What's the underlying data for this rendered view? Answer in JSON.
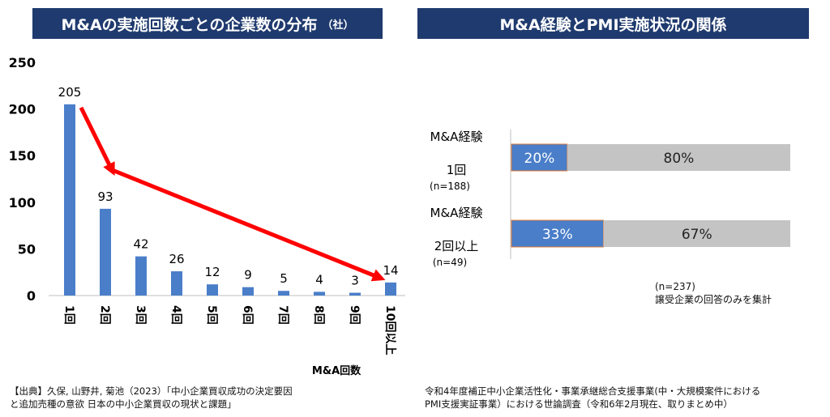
{
  "left_title": "M&Aの実施回数ごとの企業数の分布",
  "left_title_unit": "（社）",
  "right_title": "M&A経験とPMI実施状況の関係",
  "chart_data": [
    {
      "type": "bar",
      "categories": [
        "1回",
        "2回",
        "3回",
        "4回",
        "5回",
        "6回",
        "7回",
        "8回",
        "9回",
        "10回以上"
      ],
      "values": [
        205,
        93,
        42,
        26,
        12,
        9,
        5,
        4,
        3,
        14
      ],
      "xlabel": "M&A回数",
      "ylabel": "",
      "ylim": [
        0,
        250
      ],
      "yticks": [
        0,
        50,
        100,
        150,
        200,
        250
      ],
      "bar_color": "#4a7ec9",
      "annotation": "red arrows indicating decreasing trend",
      "arrow_color": "#ff0000"
    },
    {
      "type": "bar",
      "orientation": "horizontal-stacked",
      "categories": [
        {
          "line1": "M&A経験",
          "line2": "1回",
          "n": "(n=188)"
        },
        {
          "line1": "M&A経験",
          "line2": "2回以上",
          "n": "(n=49)"
        }
      ],
      "series": [
        {
          "values": [
            20,
            33
          ],
          "labels": [
            "20%",
            "33%"
          ],
          "color": "#4a7ec9"
        },
        {
          "values": [
            80,
            67
          ],
          "labels": [
            "80%",
            "67%"
          ],
          "color": "#c4c4c4"
        }
      ],
      "xlim": [
        0,
        100
      ]
    }
  ],
  "right_note": {
    "line1": "(n=237)",
    "line2": "譲受企業の回答のみを集計"
  },
  "source_left": {
    "line1": "【出典】久保, 山野井, 菊池（2023）「中小企業買収成功の決定要因",
    "line2": "と追加売種の意欲 日本の中小企業買収の現状と課題」"
  },
  "source_right": {
    "line1": "令和4年度補正中小企業活性化・事業承継総合支援事業(中・大規模案件における",
    "line2": "PMI支援実証事業）における世論調査（令和6年2月現在、取りまとめ中）"
  }
}
